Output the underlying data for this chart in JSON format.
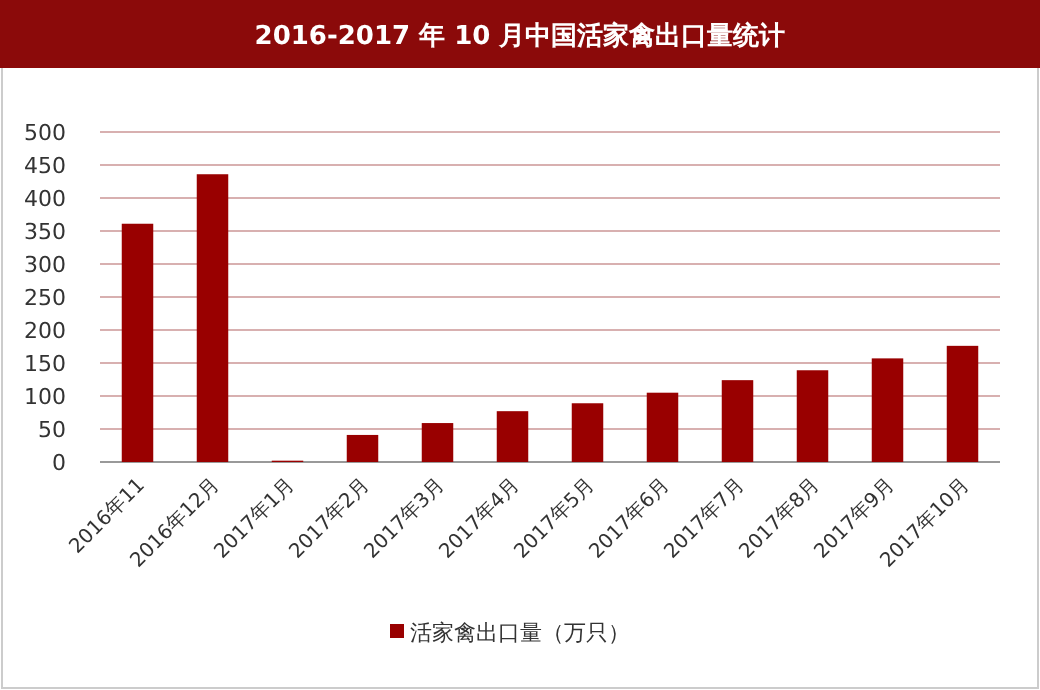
{
  "chart_data": {
    "type": "bar",
    "title": "2016-2017 年 10 月中国活家禽出口量统计",
    "categories": [
      "2016年11",
      "2016年12月",
      "2017年1月",
      "2017年2月",
      "2017年3月",
      "2017年4月",
      "2017年5月",
      "2017年6月",
      "2017年7月",
      "2017年8月",
      "2017年9月",
      "2017年10月"
    ],
    "series": [
      {
        "name": "活家禽出口量（万只）",
        "color": "#990000",
        "values": [
          361,
          436,
          2,
          41,
          59,
          77,
          89,
          105,
          124,
          139,
          157,
          176
        ]
      }
    ],
    "ylim": [
      0,
      500
    ],
    "yticks": [
      0,
      50,
      100,
      150,
      200,
      250,
      300,
      350,
      400,
      450,
      500
    ],
    "grid": "y",
    "legend": "bottom"
  }
}
